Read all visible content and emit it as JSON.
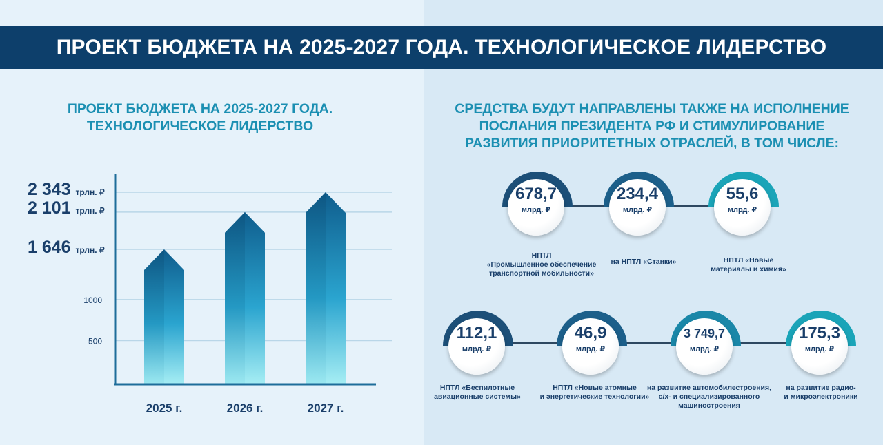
{
  "header": {
    "title": "ПРОЕКТ БЮДЖЕТА НА 2025-2027 ГОДА. ТЕХНОЛОГИЧЕСКОЕ ЛИДЕРСТВО"
  },
  "left": {
    "title_lines": [
      "ПРОЕКТ БЮДЖЕТА НА 2025-2027 ГОДА.",
      "ТЕХНОЛОГИЧЕСКОЕ ЛИДЕРСТВО"
    ]
  },
  "right": {
    "title_lines": [
      "СРЕДСТВА БУДУТ НАПРАВЛЕНЫ ТАКЖЕ НА ИСПОЛНЕНИЕ",
      "ПОСЛАНИЯ ПРЕЗИДЕНТА РФ И СТИМУЛИРОВАНИЕ",
      "РАЗВИТИЯ ПРИОРИТЕТНЫХ ОТРАСЛЕЙ, В ТОМ ЧИСЛЕ:"
    ],
    "items": [
      {
        "value": "678,7",
        "unit": "млрд. ₽",
        "caption": [
          "НПТЛ",
          "«Промышленное обеспечение",
          "транспортной мобильности»"
        ],
        "ring": "#1c4f78"
      },
      {
        "value": "234,4",
        "unit": "млрд. ₽",
        "caption": [
          "на НПТЛ «Станки»"
        ],
        "ring": "#1c5f8a"
      },
      {
        "value": "55,6",
        "unit": "млрд. ₽",
        "caption": [
          "НПТЛ «Новые",
          "материалы и химия»"
        ],
        "ring": "#1aa4b8"
      },
      {
        "value": "112,1",
        "unit": "млрд. ₽",
        "caption": [
          "НПТЛ «Беспилотные",
          "авиационные системы»"
        ],
        "ring": "#1c4f78"
      },
      {
        "value": "46,9",
        "unit": "млрд. ₽",
        "caption": [
          "НПТЛ «Новые атомные",
          "и энергетические технологии»"
        ],
        "ring": "#1c5f8a"
      },
      {
        "value": "3 749,7",
        "unit": "млрд. ₽",
        "caption": [
          "на развитие автомобилестроения,",
          "с/х- и специализированного",
          "машиностроения"
        ],
        "ring": "#1a87a8"
      },
      {
        "value": "175,3",
        "unit": "млрд. ₽",
        "caption": [
          "на развитие радио-",
          "и микроэлектроники"
        ],
        "ring": "#1aa4b8"
      }
    ]
  },
  "chart_data": {
    "type": "bar",
    "categories": [
      "2025 г.",
      "2026 г.",
      "2027 г."
    ],
    "values": [
      1646,
      2101,
      2343
    ],
    "value_labels": [
      {
        "number": "1 646",
        "unit": "трлн. ₽"
      },
      {
        "number": "2 101",
        "unit": "трлн. ₽"
      },
      {
        "number": "2 343",
        "unit": "трлн. ₽"
      }
    ],
    "yticks": [
      500,
      1000
    ],
    "ylim": [
      0,
      2470
    ],
    "grid": true,
    "title": "ПРОЕКТ БЮДЖЕТА НА 2025-2027 ГОДА. ТЕХНОЛОГИЧЕСКОЕ ЛИДЕРСТВО",
    "colors": {
      "bar_top": "#0f5d8d",
      "bar_mid": "#2aa4cf",
      "bar_bottom": "#a6eef4",
      "grid": "#b9d6e8",
      "axis": "#1e6d9a"
    }
  }
}
